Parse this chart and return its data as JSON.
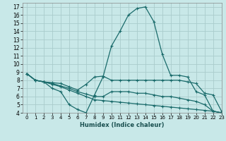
{
  "title": "",
  "xlabel": "Humidex (Indice chaleur)",
  "background_color": "#c8e8e8",
  "grid_color": "#aacccc",
  "line_color": "#1a6b6b",
  "xlim": [
    -0.5,
    23
  ],
  "ylim": [
    4,
    17.5
  ],
  "xticks": [
    0,
    1,
    2,
    3,
    4,
    5,
    6,
    7,
    8,
    9,
    10,
    11,
    12,
    13,
    14,
    15,
    16,
    17,
    18,
    19,
    20,
    21,
    22,
    23
  ],
  "yticks": [
    4,
    5,
    6,
    7,
    8,
    9,
    10,
    11,
    12,
    13,
    14,
    15,
    16,
    17
  ],
  "series": [
    [
      0,
      1,
      2,
      3,
      4,
      5,
      6,
      7,
      8,
      9,
      10,
      11,
      12,
      13,
      14,
      15,
      16,
      17,
      18,
      19,
      20,
      21,
      22,
      23
    ],
    [
      8.8,
      8.0,
      7.8,
      7.0,
      6.6,
      5.0,
      4.4,
      4.0,
      6.2,
      8.4,
      12.2,
      14.0,
      16.0,
      16.8,
      17.0,
      15.2,
      11.2,
      8.6,
      8.6,
      8.4,
      6.6,
      6.2,
      4.2,
      4.0
    ],
    [
      8.8,
      8.0,
      7.8,
      7.7,
      7.6,
      7.2,
      6.8,
      7.5,
      8.4,
      8.5,
      8.0,
      8.0,
      8.0,
      8.0,
      8.0,
      8.0,
      8.0,
      8.0,
      8.0,
      7.8,
      7.6,
      6.4,
      6.2,
      4.2
    ],
    [
      8.8,
      8.0,
      7.8,
      7.6,
      7.3,
      7.0,
      6.6,
      6.3,
      6.0,
      6.0,
      6.6,
      6.6,
      6.6,
      6.4,
      6.4,
      6.2,
      6.0,
      6.0,
      5.8,
      5.6,
      5.4,
      5.0,
      4.2,
      4.0
    ],
    [
      8.8,
      8.0,
      7.8,
      7.5,
      7.2,
      6.8,
      6.4,
      6.0,
      5.6,
      5.5,
      5.4,
      5.3,
      5.2,
      5.1,
      5.0,
      4.9,
      4.8,
      4.7,
      4.6,
      4.5,
      4.4,
      4.3,
      4.2,
      4.0
    ]
  ]
}
